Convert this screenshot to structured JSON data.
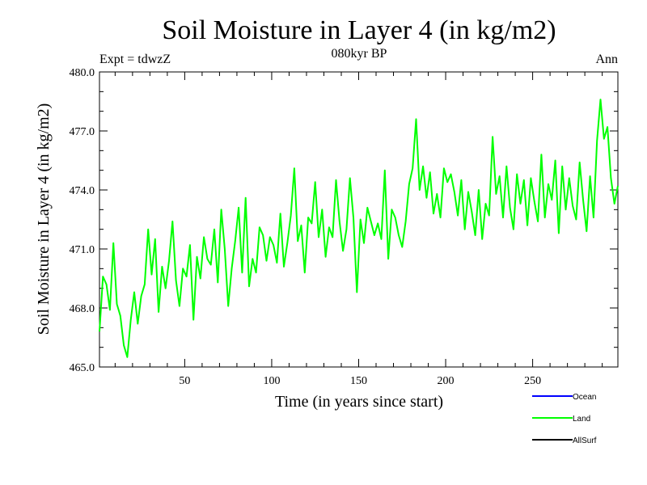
{
  "chart_data": {
    "type": "line",
    "title": "Soil Moisture in Layer 4 (in kg/m2)",
    "subtitle": "080kyr BP",
    "left_label": "Expt = tdwzZ",
    "right_label": "Ann",
    "xlabel": "Time (in years since start)",
    "ylabel": "Soil Moisture in Layer 4 (in kg/m2)",
    "xlim": [
      1,
      299
    ],
    "ylim": [
      465,
      480
    ],
    "xticks": [
      50,
      100,
      150,
      200,
      250
    ],
    "yticks": [
      "465.0",
      "468.0",
      "471.0",
      "474.0",
      "477.0",
      "480.0"
    ],
    "legend": [
      {
        "name": "Ocean",
        "color": "#0000ff"
      },
      {
        "name": "Land",
        "color": "#00ff00"
      },
      {
        "name": "AllSurf",
        "color": "#000000"
      }
    ],
    "series": [
      {
        "name": "Land",
        "color": "#00ff00",
        "x": [
          1,
          3,
          5,
          7,
          9,
          11,
          13,
          15,
          17,
          19,
          21,
          23,
          25,
          27,
          29,
          31,
          33,
          35,
          37,
          39,
          41,
          43,
          45,
          47,
          49,
          51,
          53,
          55,
          57,
          59,
          61,
          63,
          65,
          67,
          69,
          71,
          73,
          75,
          77,
          79,
          81,
          83,
          85,
          87,
          89,
          91,
          93,
          95,
          97,
          99,
          101,
          103,
          105,
          107,
          109,
          111,
          113,
          115,
          117,
          119,
          121,
          123,
          125,
          127,
          129,
          131,
          133,
          135,
          137,
          139,
          141,
          143,
          145,
          147,
          149,
          151,
          153,
          155,
          157,
          159,
          161,
          163,
          165,
          167,
          169,
          171,
          173,
          175,
          177,
          179,
          181,
          183,
          185,
          187,
          189,
          191,
          193,
          195,
          197,
          199,
          201,
          203,
          205,
          207,
          209,
          211,
          213,
          215,
          217,
          219,
          221,
          223,
          225,
          227,
          229,
          231,
          233,
          235,
          237,
          239,
          241,
          243,
          245,
          247,
          249,
          251,
          253,
          255,
          257,
          259,
          261,
          263,
          265,
          267,
          269,
          271,
          273,
          275,
          277,
          279,
          281,
          283,
          285,
          287,
          289,
          291,
          293,
          295,
          297,
          299
        ],
        "values": [
          466.8,
          469.6,
          469.2,
          467.9,
          471.3,
          468.2,
          467.6,
          466.1,
          465.5,
          467.4,
          468.8,
          467.2,
          468.6,
          469.2,
          472.0,
          469.7,
          471.5,
          467.8,
          470.1,
          469.0,
          470.4,
          472.4,
          469.4,
          468.1,
          470.0,
          469.6,
          471.2,
          467.4,
          470.6,
          469.5,
          471.6,
          470.5,
          470.2,
          472.0,
          469.3,
          473.0,
          471.0,
          468.1,
          470.0,
          471.4,
          473.1,
          469.8,
          473.6,
          469.1,
          470.5,
          469.8,
          472.1,
          471.7,
          470.4,
          471.6,
          471.2,
          470.3,
          472.8,
          470.1,
          471.3,
          472.7,
          475.1,
          471.4,
          472.2,
          469.8,
          472.6,
          472.3,
          474.4,
          471.6,
          473.0,
          470.6,
          472.1,
          471.6,
          474.5,
          472.4,
          470.9,
          472.0,
          474.6,
          472.6,
          468.8,
          472.5,
          471.3,
          473.1,
          472.4,
          471.7,
          472.3,
          471.5,
          475.0,
          470.5,
          473.0,
          472.6,
          471.7,
          471.1,
          472.4,
          474.3,
          475.1,
          477.6,
          474.0,
          475.2,
          473.6,
          474.9,
          472.8,
          473.8,
          472.6,
          475.1,
          474.4,
          474.8,
          473.9,
          472.7,
          474.5,
          472.0,
          473.9,
          472.9,
          471.7,
          474.0,
          471.5,
          473.3,
          472.7,
          476.7,
          473.8,
          474.7,
          472.6,
          475.2,
          473.1,
          472.0,
          474.8,
          473.3,
          474.5,
          472.2,
          474.6,
          473.4,
          472.4,
          475.8,
          472.6,
          474.3,
          473.5,
          475.5,
          471.8,
          475.2,
          473.0,
          474.6,
          473.2,
          472.5,
          475.4,
          473.5,
          471.9,
          474.7,
          472.6,
          476.5,
          478.6,
          476.6,
          477.2,
          474.6,
          473.3,
          474.2
        ]
      }
    ]
  }
}
